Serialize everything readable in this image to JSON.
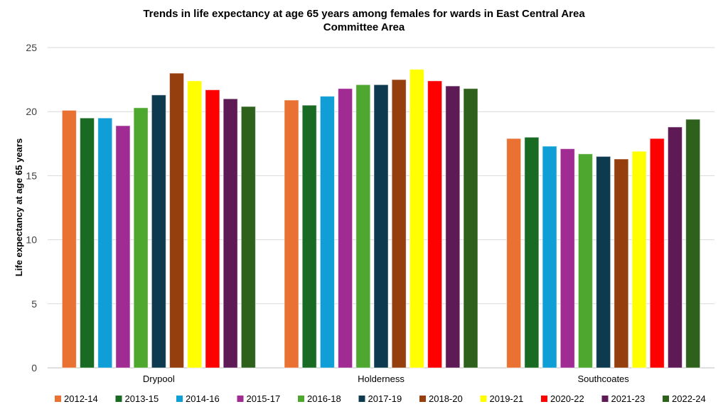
{
  "chart_data": {
    "type": "bar",
    "title": "Trends in life expectancy at  age 65 years among females for wards in East Central Area Committee Area",
    "title_lines": [
      "Trends in life expectancy at  age 65 years among females for wards in East Central Area",
      "Committee Area"
    ],
    "xlabel": "",
    "ylabel": "Life expectancy at  age 65 years",
    "ylim": [
      0,
      25
    ],
    "yticks": [
      0,
      5,
      10,
      15,
      20,
      25
    ],
    "grid": true,
    "legend_position": "bottom",
    "categories": [
      "Drypool",
      "Holderness",
      "Southcoates"
    ],
    "series": [
      {
        "name": "2012-14",
        "color": "#E97132",
        "values": [
          20.1,
          20.9,
          17.9
        ]
      },
      {
        "name": "2013-15",
        "color": "#196B24",
        "values": [
          19.5,
          20.5,
          18.0
        ]
      },
      {
        "name": "2014-16",
        "color": "#0F9ED5",
        "values": [
          19.5,
          21.2,
          17.3
        ]
      },
      {
        "name": "2015-17",
        "color": "#A02B93",
        "values": [
          18.9,
          21.8,
          17.1
        ]
      },
      {
        "name": "2016-18",
        "color": "#4EA72E",
        "values": [
          20.3,
          22.1,
          16.7
        ]
      },
      {
        "name": "2017-19",
        "color": "#0E3A4F",
        "values": [
          21.3,
          22.1,
          16.5
        ]
      },
      {
        "name": "2018-20",
        "color": "#953F0F",
        "values": [
          23.0,
          22.5,
          16.3
        ]
      },
      {
        "name": "2019-21",
        "color": "#FFFF00",
        "values": [
          22.4,
          23.3,
          16.9
        ]
      },
      {
        "name": "2020-22",
        "color": "#FF0000",
        "values": [
          21.7,
          22.4,
          17.9
        ]
      },
      {
        "name": "2021-23",
        "color": "#5E1A55",
        "values": [
          21.0,
          22.0,
          18.8
        ]
      },
      {
        "name": "2022-24",
        "color": "#2E611B",
        "values": [
          20.4,
          21.8,
          19.4
        ]
      }
    ]
  }
}
